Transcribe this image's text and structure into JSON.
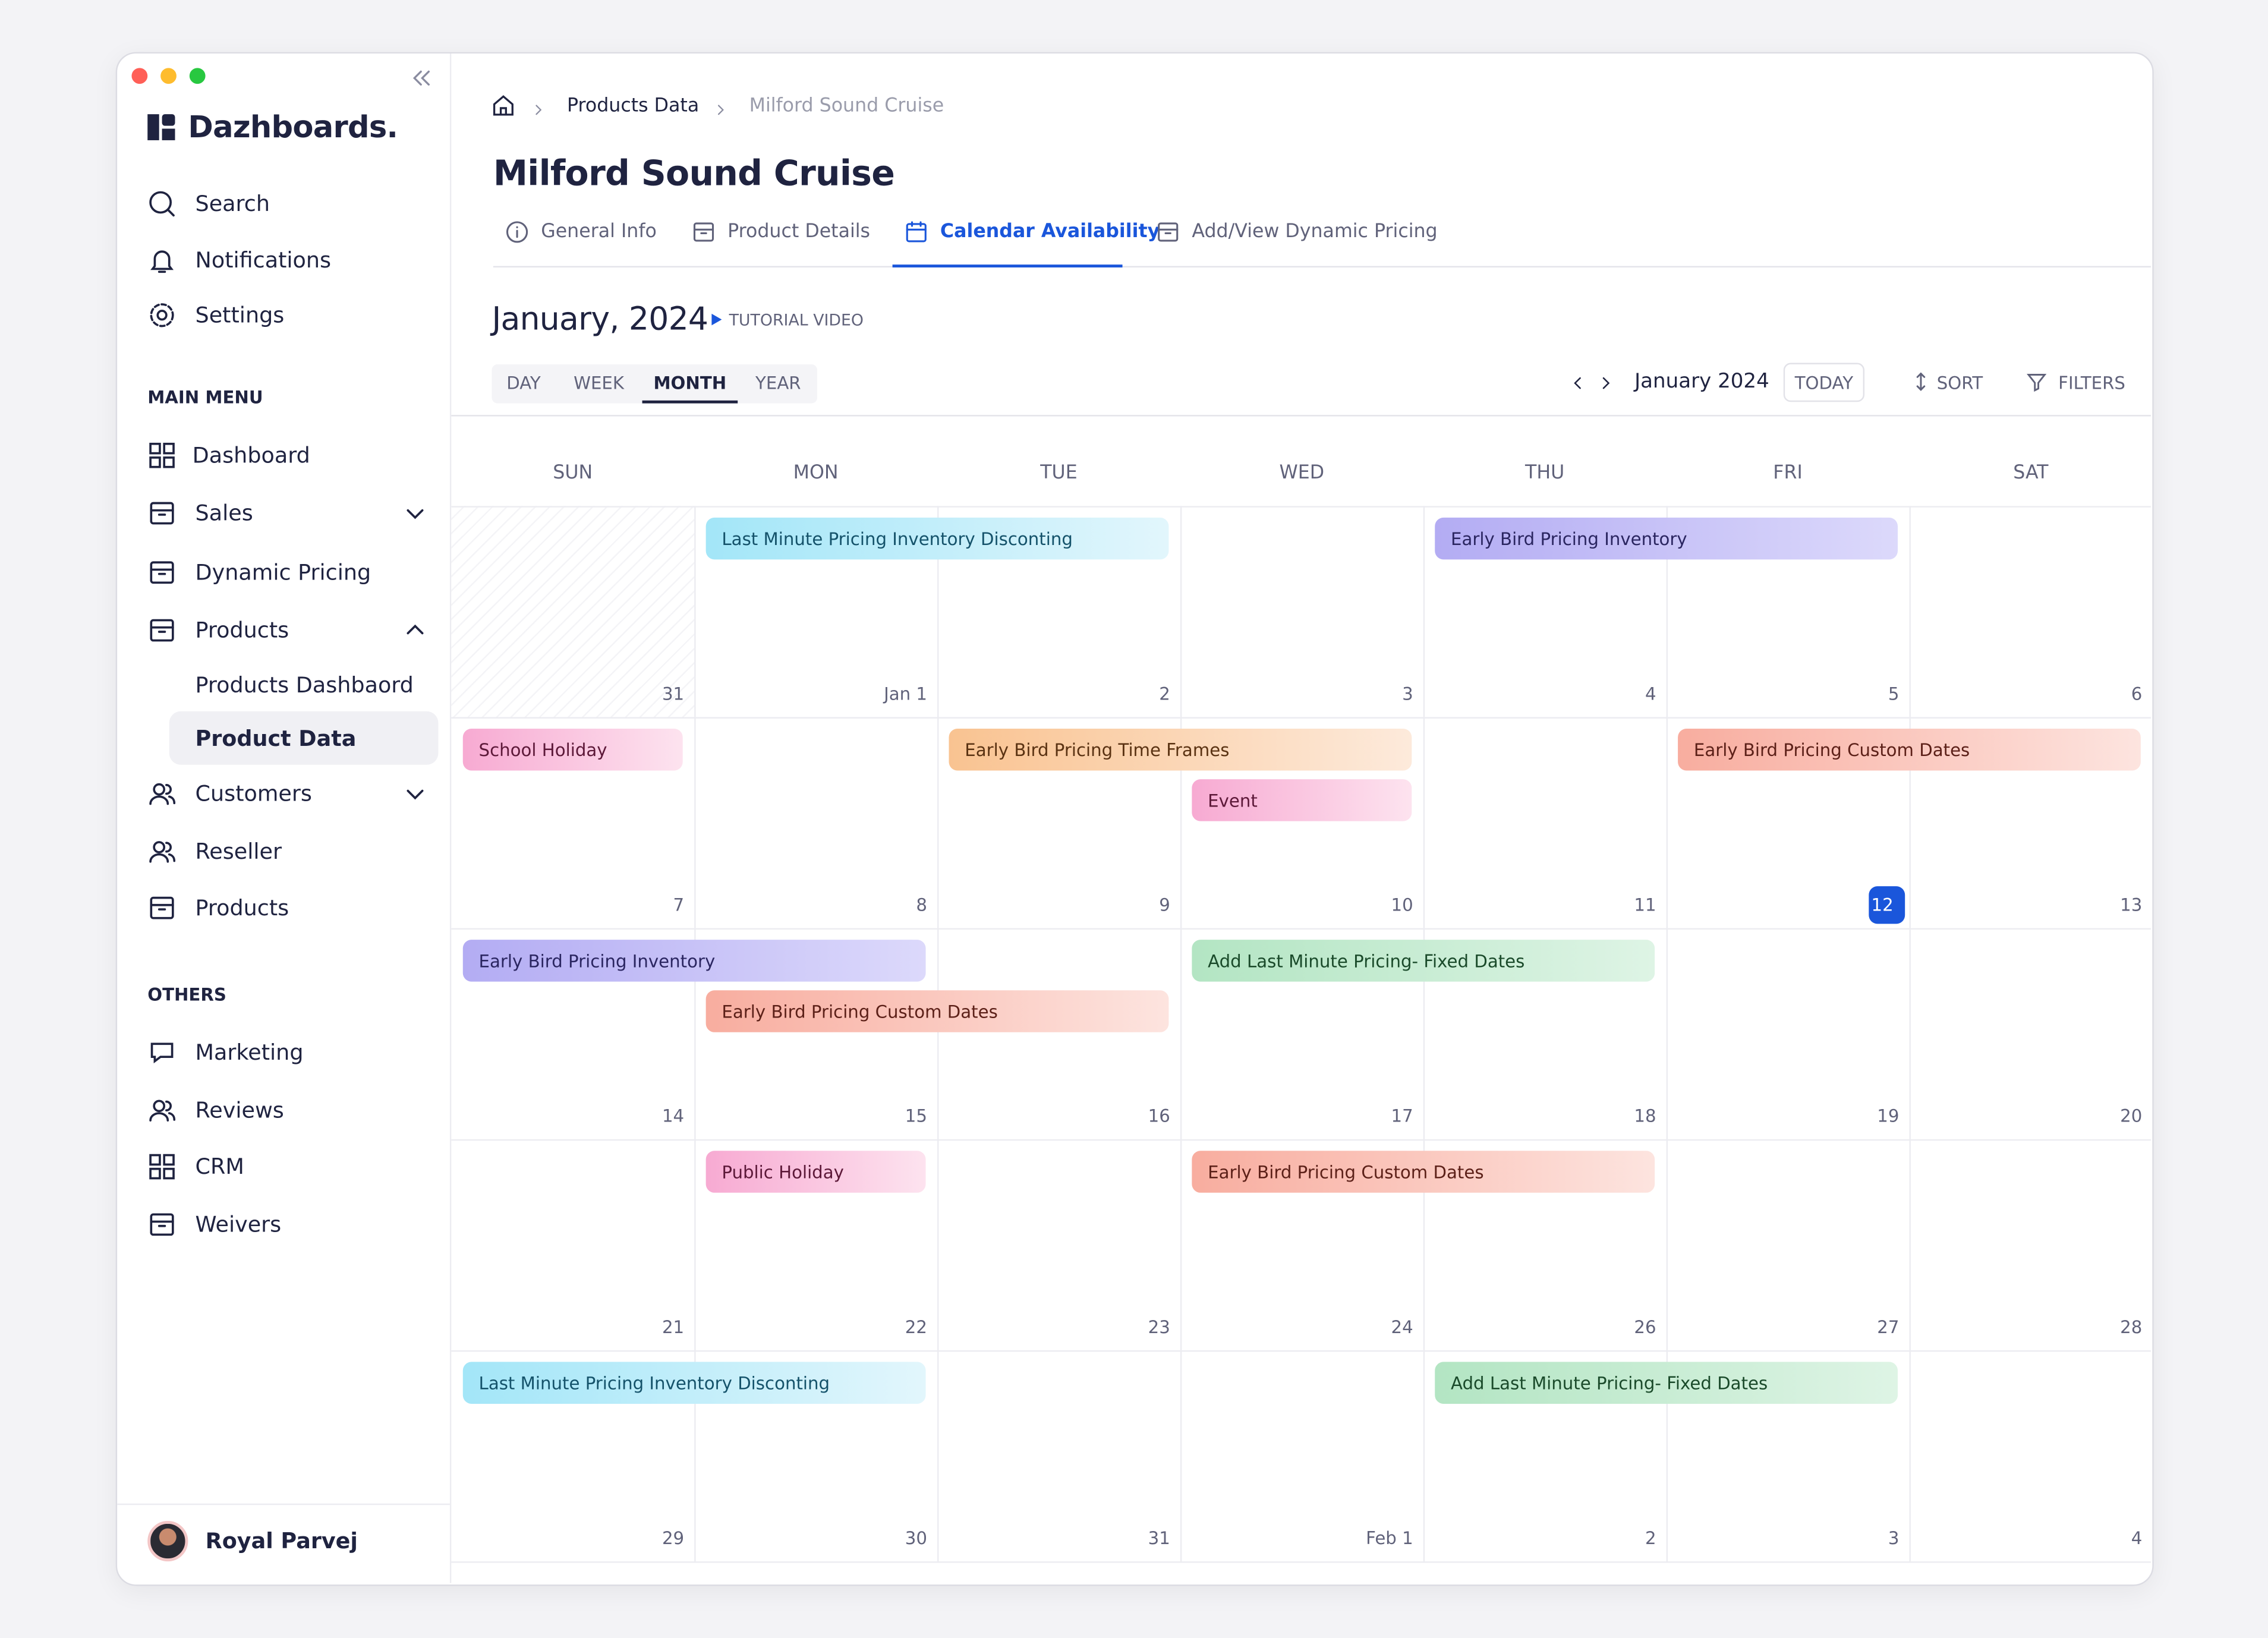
{
  "sidebar": {
    "brand": "Dazhboards.",
    "top": [
      "Search",
      "Notifications",
      "Settings"
    ],
    "main_menu": {
      "label": "MAIN MENU",
      "items": [
        "Dashboard",
        "Sales",
        "Dynamic Pricing",
        "Products",
        "Products Dashbaord",
        "Product Data",
        "Customers",
        "Reseller",
        "Products"
      ]
    },
    "others": {
      "label": "OTHERS",
      "items": [
        "Marketing",
        "Reviews",
        "CRM",
        "Weivers"
      ]
    },
    "user": "Royal Parvej"
  },
  "breadcrumb": [
    "Products Data",
    "Milford Sound Cruise"
  ],
  "title": "Milford Sound Cruise",
  "tabs": [
    "General Info",
    "Product Details",
    "Calendar Availability",
    "Add/View Dynamic Pricing"
  ],
  "calendar": {
    "heading": "January, 2024",
    "tutorial": "TUTORIAL VIDEO",
    "views": [
      "DAY",
      "WEEK",
      "MONTH",
      "YEAR"
    ],
    "current": "January 2024",
    "today": "TODAY",
    "sort": "SORT",
    "filters": "FILTERS",
    "weekdays": [
      "SUN",
      "MON",
      "TUE",
      "WED",
      "THU",
      "FRI",
      "SAT"
    ],
    "weeks": [
      [
        "31",
        "Jan 1",
        "2",
        "3",
        "4",
        "5",
        "6"
      ],
      [
        "7",
        "8",
        "9",
        "10",
        "11",
        "12",
        "13"
      ],
      [
        "14",
        "15",
        "16",
        "17",
        "18",
        "19",
        "20"
      ],
      [
        "21",
        "22",
        "23",
        "24",
        "26",
        "27",
        "28"
      ],
      [
        "29",
        "30",
        "31",
        "Feb 1",
        "2",
        "3",
        "4"
      ]
    ],
    "events": [
      [
        "Last Minute Pricing Inventory Disconting",
        "Early Bird Pricing Inventory"
      ],
      [
        "School Holiday",
        "Early Bird Pricing Time Frames",
        "Event",
        "Early Bird Pricing Custom Dates"
      ],
      [
        "Early Bird Pricing Inventory",
        "Early Bird Pricing Custom Dates",
        "Add Last Minute Pricing- Fixed Dates"
      ],
      [
        "Public Holiday",
        "Early Bird Pricing Custom Dates"
      ],
      [
        "Last Minute Pricing Inventory Disconting",
        "Add Last Minute Pricing- Fixed Dates"
      ]
    ]
  }
}
